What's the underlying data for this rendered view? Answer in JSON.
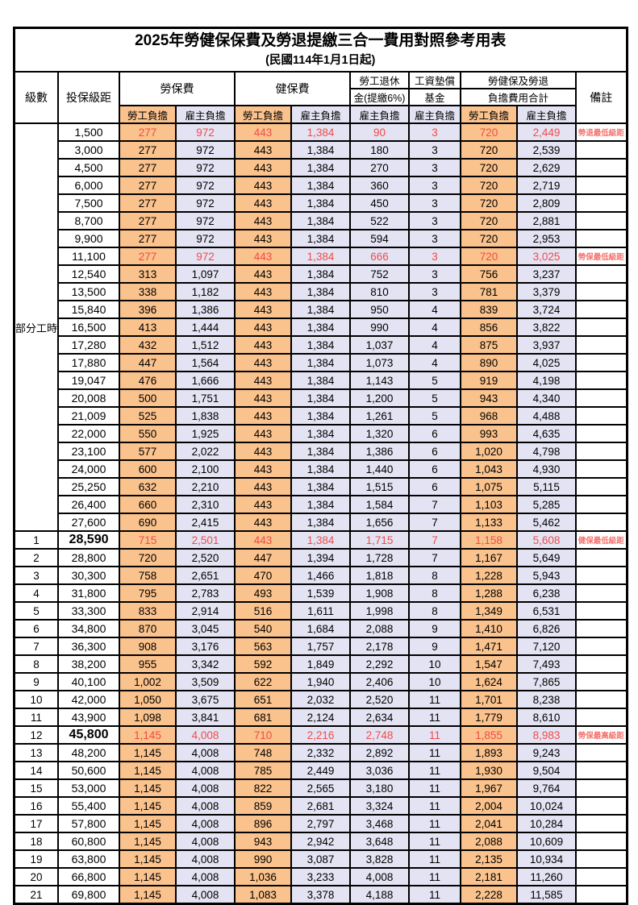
{
  "title": "2025年勞健保保費及勞退提繳三合一費用對照參考用表",
  "subtitle": "(民國114年1月1日起)",
  "colors": {
    "employee_bg": "#FAC28C",
    "employer_bg": "#E3E3F3",
    "highlight_red": "#F24B46",
    "remark_red": "#F5736F",
    "border": "#000000"
  },
  "header": {
    "level": "級數",
    "bracket": "投保級距",
    "labor_ins": "勞保費",
    "health_ins": "健保費",
    "pension_line1": "勞工退休",
    "pension_line2": "金(提繳6%)",
    "wage_fund_line1": "工資墊償",
    "wage_fund_line2": "基金",
    "total_line1": "勞健保及勞退",
    "total_line2": "負擔費用合計",
    "remark": "備註",
    "employee": "勞工負擔",
    "employer": "雇主負擔"
  },
  "part_time": {
    "label": "部分工時",
    "span": 23
  },
  "rows": [
    {
      "lv": "",
      "b": "1,500",
      "v": [
        "277",
        "972",
        "443",
        "1,384",
        "90",
        "3",
        "720",
        "2,449"
      ],
      "rm": "勞退最低級距",
      "red": true,
      "big": false
    },
    {
      "lv": "",
      "b": "3,000",
      "v": [
        "277",
        "972",
        "443",
        "1,384",
        "180",
        "3",
        "720",
        "2,539"
      ],
      "rm": "",
      "red": false,
      "big": false
    },
    {
      "lv": "",
      "b": "4,500",
      "v": [
        "277",
        "972",
        "443",
        "1,384",
        "270",
        "3",
        "720",
        "2,629"
      ],
      "rm": "",
      "red": false,
      "big": false
    },
    {
      "lv": "",
      "b": "6,000",
      "v": [
        "277",
        "972",
        "443",
        "1,384",
        "360",
        "3",
        "720",
        "2,719"
      ],
      "rm": "",
      "red": false,
      "big": false
    },
    {
      "lv": "",
      "b": "7,500",
      "v": [
        "277",
        "972",
        "443",
        "1,384",
        "450",
        "3",
        "720",
        "2,809"
      ],
      "rm": "",
      "red": false,
      "big": false
    },
    {
      "lv": "",
      "b": "8,700",
      "v": [
        "277",
        "972",
        "443",
        "1,384",
        "522",
        "3",
        "720",
        "2,881"
      ],
      "rm": "",
      "red": false,
      "big": false
    },
    {
      "lv": "",
      "b": "9,900",
      "v": [
        "277",
        "972",
        "443",
        "1,384",
        "594",
        "3",
        "720",
        "2,953"
      ],
      "rm": "",
      "red": false,
      "big": false
    },
    {
      "lv": "",
      "b": "11,100",
      "v": [
        "277",
        "972",
        "443",
        "1,384",
        "666",
        "3",
        "720",
        "3,025"
      ],
      "rm": "勞保最低級距",
      "red": true,
      "big": false
    },
    {
      "lv": "",
      "b": "12,540",
      "v": [
        "313",
        "1,097",
        "443",
        "1,384",
        "752",
        "3",
        "756",
        "3,237"
      ],
      "rm": "",
      "red": false,
      "big": false
    },
    {
      "lv": "",
      "b": "13,500",
      "v": [
        "338",
        "1,182",
        "443",
        "1,384",
        "810",
        "3",
        "781",
        "3,379"
      ],
      "rm": "",
      "red": false,
      "big": false
    },
    {
      "lv": "",
      "b": "15,840",
      "v": [
        "396",
        "1,386",
        "443",
        "1,384",
        "950",
        "4",
        "839",
        "3,724"
      ],
      "rm": "",
      "red": false,
      "big": false
    },
    {
      "lv": "",
      "b": "16,500",
      "v": [
        "413",
        "1,444",
        "443",
        "1,384",
        "990",
        "4",
        "856",
        "3,822"
      ],
      "rm": "",
      "red": false,
      "big": false
    },
    {
      "lv": "",
      "b": "17,280",
      "v": [
        "432",
        "1,512",
        "443",
        "1,384",
        "1,037",
        "4",
        "875",
        "3,937"
      ],
      "rm": "",
      "red": false,
      "big": false
    },
    {
      "lv": "",
      "b": "17,880",
      "v": [
        "447",
        "1,564",
        "443",
        "1,384",
        "1,073",
        "4",
        "890",
        "4,025"
      ],
      "rm": "",
      "red": false,
      "big": false
    },
    {
      "lv": "",
      "b": "19,047",
      "v": [
        "476",
        "1,666",
        "443",
        "1,384",
        "1,143",
        "5",
        "919",
        "4,198"
      ],
      "rm": "",
      "red": false,
      "big": false
    },
    {
      "lv": "",
      "b": "20,008",
      "v": [
        "500",
        "1,751",
        "443",
        "1,384",
        "1,200",
        "5",
        "943",
        "4,340"
      ],
      "rm": "",
      "red": false,
      "big": false
    },
    {
      "lv": "",
      "b": "21,009",
      "v": [
        "525",
        "1,838",
        "443",
        "1,384",
        "1,261",
        "5",
        "968",
        "4,488"
      ],
      "rm": "",
      "red": false,
      "big": false
    },
    {
      "lv": "",
      "b": "22,000",
      "v": [
        "550",
        "1,925",
        "443",
        "1,384",
        "1,320",
        "6",
        "993",
        "4,635"
      ],
      "rm": "",
      "red": false,
      "big": false
    },
    {
      "lv": "",
      "b": "23,100",
      "v": [
        "577",
        "2,022",
        "443",
        "1,384",
        "1,386",
        "6",
        "1,020",
        "4,798"
      ],
      "rm": "",
      "red": false,
      "big": false
    },
    {
      "lv": "",
      "b": "24,000",
      "v": [
        "600",
        "2,100",
        "443",
        "1,384",
        "1,440",
        "6",
        "1,043",
        "4,930"
      ],
      "rm": "",
      "red": false,
      "big": false
    },
    {
      "lv": "",
      "b": "25,250",
      "v": [
        "632",
        "2,210",
        "443",
        "1,384",
        "1,515",
        "6",
        "1,075",
        "5,115"
      ],
      "rm": "",
      "red": false,
      "big": false
    },
    {
      "lv": "",
      "b": "26,400",
      "v": [
        "660",
        "2,310",
        "443",
        "1,384",
        "1,584",
        "7",
        "1,103",
        "5,285"
      ],
      "rm": "",
      "red": false,
      "big": false
    },
    {
      "lv": "",
      "b": "27,600",
      "v": [
        "690",
        "2,415",
        "443",
        "1,384",
        "1,656",
        "7",
        "1,133",
        "5,462"
      ],
      "rm": "",
      "red": false,
      "big": false
    },
    {
      "lv": "1",
      "b": "28,590",
      "v": [
        "715",
        "2,501",
        "443",
        "1,384",
        "1,715",
        "7",
        "1,158",
        "5,608"
      ],
      "rm": "健保最低級距",
      "red": true,
      "big": true
    },
    {
      "lv": "2",
      "b": "28,800",
      "v": [
        "720",
        "2,520",
        "447",
        "1,394",
        "1,728",
        "7",
        "1,167",
        "5,649"
      ],
      "rm": "",
      "red": false,
      "big": false
    },
    {
      "lv": "3",
      "b": "30,300",
      "v": [
        "758",
        "2,651",
        "470",
        "1,466",
        "1,818",
        "8",
        "1,228",
        "5,943"
      ],
      "rm": "",
      "red": false,
      "big": false
    },
    {
      "lv": "4",
      "b": "31,800",
      "v": [
        "795",
        "2,783",
        "493",
        "1,539",
        "1,908",
        "8",
        "1,288",
        "6,238"
      ],
      "rm": "",
      "red": false,
      "big": false
    },
    {
      "lv": "5",
      "b": "33,300",
      "v": [
        "833",
        "2,914",
        "516",
        "1,611",
        "1,998",
        "8",
        "1,349",
        "6,531"
      ],
      "rm": "",
      "red": false,
      "big": false
    },
    {
      "lv": "6",
      "b": "34,800",
      "v": [
        "870",
        "3,045",
        "540",
        "1,684",
        "2,088",
        "9",
        "1,410",
        "6,826"
      ],
      "rm": "",
      "red": false,
      "big": false
    },
    {
      "lv": "7",
      "b": "36,300",
      "v": [
        "908",
        "3,176",
        "563",
        "1,757",
        "2,178",
        "9",
        "1,471",
        "7,120"
      ],
      "rm": "",
      "red": false,
      "big": false
    },
    {
      "lv": "8",
      "b": "38,200",
      "v": [
        "955",
        "3,342",
        "592",
        "1,849",
        "2,292",
        "10",
        "1,547",
        "7,493"
      ],
      "rm": "",
      "red": false,
      "big": false
    },
    {
      "lv": "9",
      "b": "40,100",
      "v": [
        "1,002",
        "3,509",
        "622",
        "1,940",
        "2,406",
        "10",
        "1,624",
        "7,865"
      ],
      "rm": "",
      "red": false,
      "big": false
    },
    {
      "lv": "10",
      "b": "42,000",
      "v": [
        "1,050",
        "3,675",
        "651",
        "2,032",
        "2,520",
        "11",
        "1,701",
        "8,238"
      ],
      "rm": "",
      "red": false,
      "big": false
    },
    {
      "lv": "11",
      "b": "43,900",
      "v": [
        "1,098",
        "3,841",
        "681",
        "2,124",
        "2,634",
        "11",
        "1,779",
        "8,610"
      ],
      "rm": "",
      "red": false,
      "big": false
    },
    {
      "lv": "12",
      "b": "45,800",
      "v": [
        "1,145",
        "4,008",
        "710",
        "2,216",
        "2,748",
        "11",
        "1,855",
        "8,983"
      ],
      "rm": "勞保最高級距",
      "red": true,
      "big": true
    },
    {
      "lv": "13",
      "b": "48,200",
      "v": [
        "1,145",
        "4,008",
        "748",
        "2,332",
        "2,892",
        "11",
        "1,893",
        "9,243"
      ],
      "rm": "",
      "red": false,
      "big": false
    },
    {
      "lv": "14",
      "b": "50,600",
      "v": [
        "1,145",
        "4,008",
        "785",
        "2,449",
        "3,036",
        "11",
        "1,930",
        "9,504"
      ],
      "rm": "",
      "red": false,
      "big": false
    },
    {
      "lv": "15",
      "b": "53,000",
      "v": [
        "1,145",
        "4,008",
        "822",
        "2,565",
        "3,180",
        "11",
        "1,967",
        "9,764"
      ],
      "rm": "",
      "red": false,
      "big": false
    },
    {
      "lv": "16",
      "b": "55,400",
      "v": [
        "1,145",
        "4,008",
        "859",
        "2,681",
        "3,324",
        "11",
        "2,004",
        "10,024"
      ],
      "rm": "",
      "red": false,
      "big": false
    },
    {
      "lv": "17",
      "b": "57,800",
      "v": [
        "1,145",
        "4,008",
        "896",
        "2,797",
        "3,468",
        "11",
        "2,041",
        "10,284"
      ],
      "rm": "",
      "red": false,
      "big": false
    },
    {
      "lv": "18",
      "b": "60,800",
      "v": [
        "1,145",
        "4,008",
        "943",
        "2,942",
        "3,648",
        "11",
        "2,088",
        "10,609"
      ],
      "rm": "",
      "red": false,
      "big": false
    },
    {
      "lv": "19",
      "b": "63,800",
      "v": [
        "1,145",
        "4,008",
        "990",
        "3,087",
        "3,828",
        "11",
        "2,135",
        "10,934"
      ],
      "rm": "",
      "red": false,
      "big": false
    },
    {
      "lv": "20",
      "b": "66,800",
      "v": [
        "1,145",
        "4,008",
        "1,036",
        "3,233",
        "4,008",
        "11",
        "2,181",
        "11,260"
      ],
      "rm": "",
      "red": false,
      "big": false
    },
    {
      "lv": "21",
      "b": "69,800",
      "v": [
        "1,145",
        "4,008",
        "1,083",
        "3,378",
        "4,188",
        "11",
        "2,228",
        "11,585"
      ],
      "rm": "",
      "red": false,
      "big": false
    }
  ]
}
